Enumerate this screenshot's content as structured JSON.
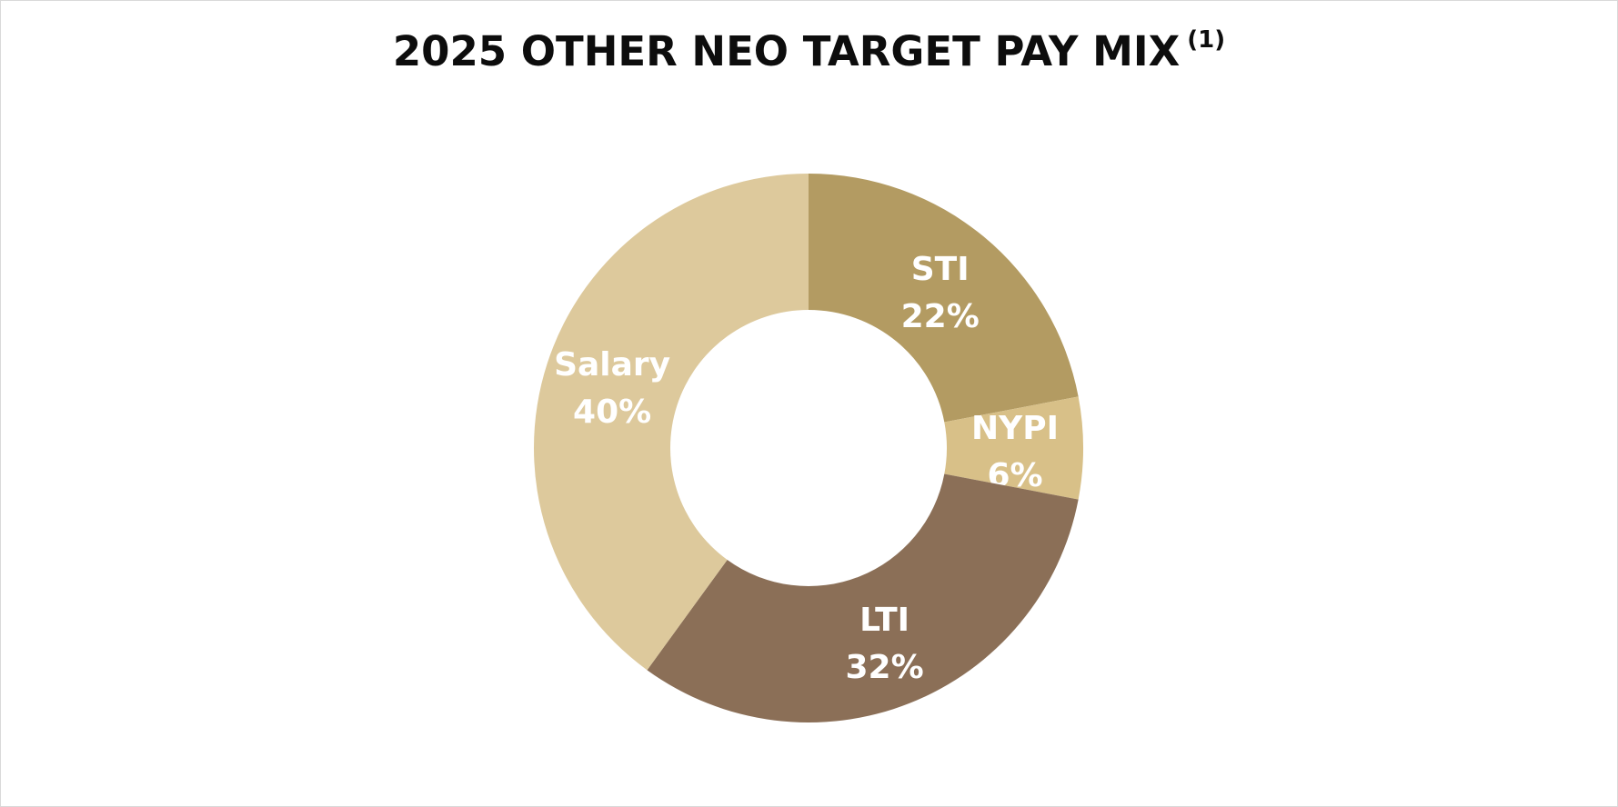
{
  "chart_data": {
    "type": "pie",
    "variant": "donut",
    "title": "2025 OTHER NEO TARGET PAY MIX",
    "title_superscript": "(1)",
    "slices": [
      {
        "label": "STI",
        "value": 22,
        "value_label": "22%",
        "color": "#b39b62"
      },
      {
        "label": "NYPI",
        "value": 6,
        "value_label": "6%",
        "color": "#d8c088"
      },
      {
        "label": "LTI",
        "value": 32,
        "value_label": "32%",
        "color": "#8b6f57"
      },
      {
        "label": "Salary",
        "value": 40,
        "value_label": "40%",
        "color": "#ddc99c"
      }
    ],
    "start_angle": "12 o'clock",
    "direction": "clockwise",
    "legend": "none",
    "label_color": "#ffffff"
  }
}
